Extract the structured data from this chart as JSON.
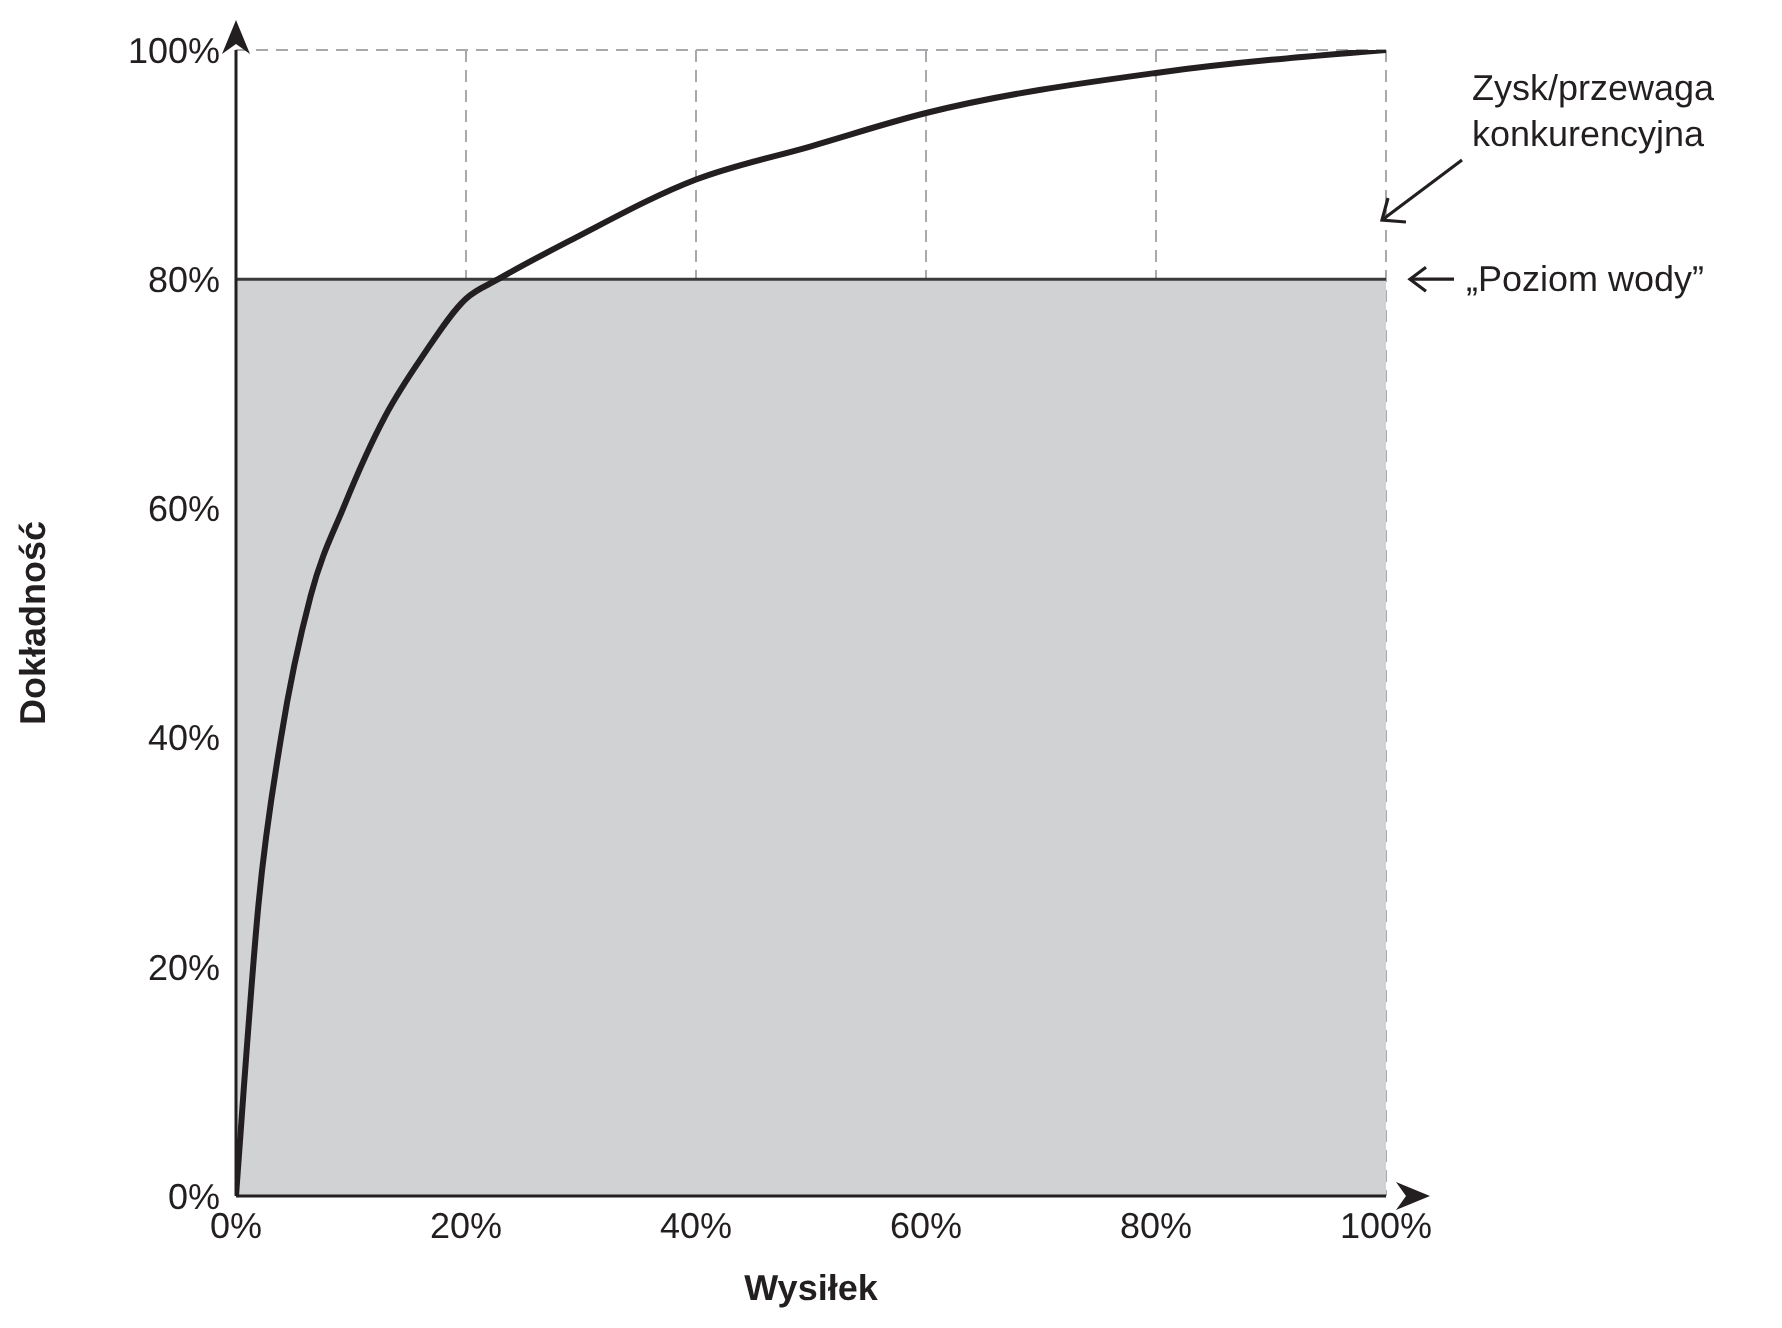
{
  "chart_data": {
    "type": "line",
    "xlabel": "Wysiłek",
    "ylabel": "Dokładność",
    "x": [
      0,
      0.65,
      1.95,
      3.9,
      6.5,
      9.4,
      13,
      16.3,
      20,
      22.8,
      29.3,
      40,
      50,
      60,
      80,
      100
    ],
    "series": [
      {
        "color": "#231f20",
        "values": [
          0,
          9,
          25.4,
          39.9,
          52.4,
          60.2,
          68.1,
          73.4,
          78.3,
          80,
          83.5,
          88.7,
          91.6,
          94.5,
          98,
          100
        ]
      }
    ],
    "xlim": [
      0,
      100
    ],
    "ylim": [
      0,
      100
    ],
    "xticks": [
      {
        "value": 0,
        "label": "0%"
      },
      {
        "value": 20,
        "label": "20%"
      },
      {
        "value": 40,
        "label": "40%"
      },
      {
        "value": 60,
        "label": "60%"
      },
      {
        "value": 80,
        "label": "80%"
      },
      {
        "value": 100,
        "label": "100%"
      }
    ],
    "yticks": [
      {
        "value": 0,
        "label": "0%"
      },
      {
        "value": 20,
        "label": "20%"
      },
      {
        "value": 40,
        "label": "40%"
      },
      {
        "value": 60,
        "label": "60%"
      },
      {
        "value": 80,
        "label": "80%"
      },
      {
        "value": 100,
        "label": "100%"
      }
    ],
    "grid": true,
    "marker": "none",
    "line_style": "solid",
    "ref_lines": [
      {
        "axis": "y",
        "value": 80,
        "label": "„Poziom wody”",
        "color": "#3a3a3a"
      }
    ],
    "bands": [
      {
        "axis": "y",
        "from": 0,
        "to": 80,
        "color": "#d1d2d4"
      }
    ],
    "annotations": [
      "Zysk/przewaga konkurencyjna"
    ]
  }
}
